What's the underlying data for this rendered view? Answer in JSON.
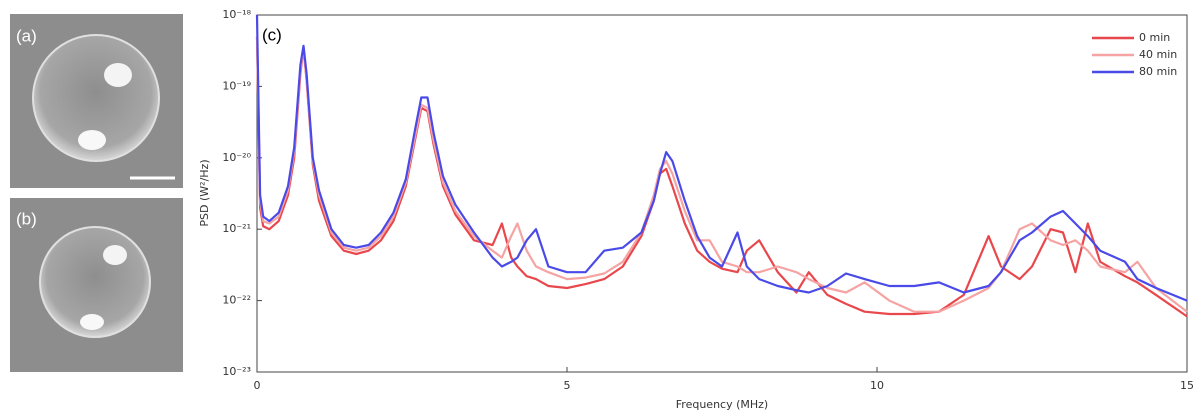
{
  "panels": [
    {
      "label": "(a)"
    },
    {
      "label": "(b)"
    }
  ],
  "chart_data": {
    "type": "line",
    "annotation": "(c)",
    "xlabel": "Frequency (MHz)",
    "ylabel": "PSD (W²/Hz)",
    "log_y": true,
    "grid": false,
    "legend": "upper right",
    "xlim": [
      0,
      15
    ],
    "xticks": [
      0,
      5,
      10,
      15
    ],
    "ylim": [
      1e-23,
      1e-18
    ],
    "yticks": [
      {
        "value": 1e-23,
        "label": "10⁻²³"
      },
      {
        "value": 1e-22,
        "label": "10⁻²²"
      },
      {
        "value": 1e-21,
        "label": "10⁻²¹"
      },
      {
        "value": 1e-20,
        "label": "10⁻²⁰"
      },
      {
        "value": 1e-19,
        "label": "10⁻¹⁹"
      },
      {
        "value": 1e-18,
        "label": "10⁻¹⁸"
      }
    ],
    "x": [
      0,
      0.05,
      0.1,
      0.2,
      0.35,
      0.5,
      0.6,
      0.7,
      0.75,
      0.8,
      0.9,
      1.0,
      1.2,
      1.4,
      1.6,
      1.8,
      2.0,
      2.2,
      2.4,
      2.55,
      2.65,
      2.75,
      2.85,
      3.0,
      3.2,
      3.5,
      3.8,
      3.95,
      4.1,
      4.2,
      4.35,
      4.5,
      4.7,
      5.0,
      5.3,
      5.6,
      5.9,
      6.2,
      6.4,
      6.5,
      6.6,
      6.7,
      6.9,
      7.1,
      7.3,
      7.5,
      7.75,
      7.9,
      8.1,
      8.4,
      8.7,
      8.9,
      9.2,
      9.5,
      9.8,
      10.2,
      10.6,
      11.0,
      11.4,
      11.8,
      12.0,
      12.3,
      12.5,
      12.8,
      13.0,
      13.2,
      13.4,
      13.6,
      14.0,
      14.2,
      14.5,
      15.0
    ],
    "series": [
      {
        "name": "0 min",
        "color": "#e8474c",
        "values": [
          5e-19,
          2e-21,
          1.1e-21,
          1e-21,
          1.3e-21,
          3e-21,
          1e-20,
          1.5e-19,
          3.5e-19,
          1.2e-19,
          8e-21,
          2.5e-21,
          8e-22,
          5e-22,
          4.5e-22,
          5e-22,
          7e-22,
          1.3e-21,
          4e-21,
          1.8e-20,
          5e-20,
          4.5e-20,
          1.5e-20,
          4e-21,
          1.6e-21,
          7e-22,
          6e-22,
          1.2e-21,
          4e-22,
          3e-22,
          2.2e-22,
          2e-22,
          1.6e-22,
          1.5e-22,
          1.7e-22,
          2e-22,
          3e-22,
          8e-22,
          2.5e-21,
          6e-21,
          7e-21,
          4e-21,
          1.2e-21,
          5e-22,
          3.5e-22,
          2.8e-22,
          2.5e-22,
          5e-22,
          7e-22,
          2.5e-22,
          1.3e-22,
          2.5e-22,
          1.2e-22,
          9e-23,
          7e-23,
          6.5e-23,
          6.5e-23,
          7e-23,
          1.2e-22,
          8e-22,
          3e-22,
          2e-22,
          3e-22,
          1e-21,
          9e-22,
          2.5e-22,
          1.2e-21,
          3.5e-22,
          2.2e-22,
          1.8e-22,
          1.2e-22,
          6e-23
        ]
      },
      {
        "name": "40 min",
        "color": "#f5a3a3",
        "values": [
          5e-19,
          2.5e-21,
          1.3e-21,
          1.2e-21,
          1.5e-21,
          3.5e-21,
          1.2e-20,
          1.7e-19,
          3.5e-19,
          1.3e-19,
          9e-21,
          3e-21,
          9e-22,
          5.5e-22,
          5e-22,
          5.5e-22,
          8e-22,
          1.5e-21,
          4.5e-21,
          2e-20,
          5.5e-20,
          5e-20,
          1.7e-20,
          4.5e-21,
          1.8e-21,
          8e-22,
          5e-22,
          4e-22,
          8e-22,
          1.2e-21,
          5e-22,
          3e-22,
          2.5e-22,
          2e-22,
          2.1e-22,
          2.4e-22,
          3.5e-22,
          9e-22,
          3e-21,
          7e-21,
          9e-21,
          6e-21,
          1.8e-21,
          7e-22,
          7e-22,
          3.5e-22,
          3e-22,
          2.5e-22,
          2.5e-22,
          3e-22,
          2.5e-22,
          2e-22,
          1.5e-22,
          1.3e-22,
          1.8e-22,
          1e-22,
          7e-23,
          7e-23,
          1e-22,
          1.5e-22,
          2.5e-22,
          1e-21,
          1.2e-21,
          7e-22,
          6e-22,
          7e-22,
          5e-22,
          3e-22,
          2.5e-22,
          3.5e-22,
          1.5e-22,
          7e-23
        ]
      },
      {
        "name": "80 min",
        "color": "#4a4ae8",
        "values": [
          1e-18,
          3e-21,
          1.5e-21,
          1.3e-21,
          1.7e-21,
          4e-21,
          1.4e-20,
          2e-19,
          3.7e-19,
          1.5e-19,
          1e-20,
          3.5e-21,
          1e-21,
          6e-22,
          5.5e-22,
          6e-22,
          9e-22,
          1.7e-21,
          5e-21,
          2.5e-20,
          7e-20,
          7e-20,
          2.2e-20,
          5.5e-21,
          2.2e-21,
          9e-22,
          4e-22,
          3e-22,
          3.5e-22,
          4e-22,
          7e-22,
          1e-21,
          3e-22,
          2.5e-22,
          2.5e-22,
          5e-22,
          5.5e-22,
          9e-22,
          2.5e-21,
          6e-21,
          1.2e-20,
          9e-21,
          2.5e-21,
          8e-22,
          4e-22,
          3e-22,
          9e-22,
          3e-22,
          2e-22,
          1.6e-22,
          1.4e-22,
          1.3e-22,
          1.6e-22,
          2.4e-22,
          2e-22,
          1.6e-22,
          1.6e-22,
          1.8e-22,
          1.3e-22,
          1.6e-22,
          2.5e-22,
          7e-22,
          9e-22,
          1.5e-21,
          1.8e-21,
          1.2e-21,
          8e-22,
          5e-22,
          3.5e-22,
          2e-22,
          1.5e-22,
          1e-22
        ]
      }
    ]
  }
}
